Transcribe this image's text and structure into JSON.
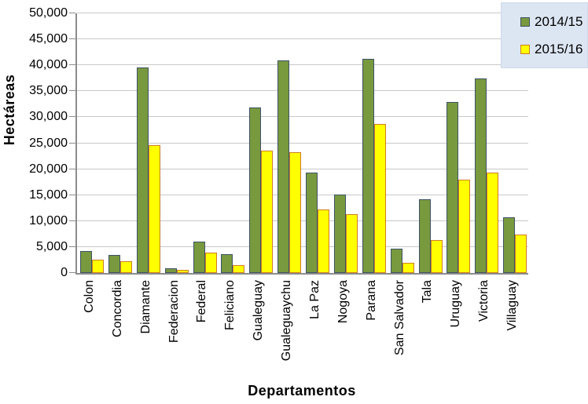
{
  "chart_data": {
    "type": "bar",
    "title": "",
    "xlabel": "Departamentos",
    "ylabel": "Hectáreas",
    "ylim": [
      0,
      50000
    ],
    "ytick_step": 5000,
    "grid": true,
    "legend_position": "top-right",
    "categories": [
      "Colon",
      "Concordia",
      "Diamante",
      "Federacion",
      "Federal",
      "Feliciano",
      "Gualeguay",
      "Gualeguaychu",
      "La Paz",
      "Nogoya",
      "Parana",
      "San Salvador",
      "Tala",
      "Uruguay",
      "Victoria",
      "Villaguay"
    ],
    "series": [
      {
        "name": "2014/15",
        "color": "#78993E",
        "border_color": "#3D5266",
        "values": [
          4300,
          3500,
          39600,
          900,
          6100,
          3700,
          31800,
          40900,
          19300,
          15100,
          41300,
          4700,
          14200,
          33000,
          37400,
          10800
        ]
      },
      {
        "name": "2015/16",
        "color": "#FFFF00",
        "border_color": "#CE7D24",
        "values": [
          2600,
          2200,
          24700,
          600,
          4000,
          1500,
          23600,
          23300,
          12300,
          11400,
          28700,
          2000,
          6300,
          18000,
          19400,
          7400
        ]
      }
    ]
  },
  "colors": {
    "legend_background": "#DCE6F2",
    "gridline": "#C9C9C9",
    "axis": "#8C8C8C"
  }
}
